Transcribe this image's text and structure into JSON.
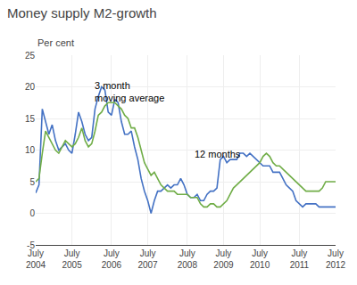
{
  "chart_data": {
    "type": "line",
    "title": "Money supply M2-growth",
    "ylabel": "Per cent",
    "categories": [
      "July\n2004",
      null,
      null,
      null,
      null,
      null,
      null,
      null,
      null,
      null,
      null,
      "July\n2005",
      null,
      null,
      null,
      null,
      null,
      null,
      null,
      null,
      null,
      null,
      null,
      "July\n2006",
      null,
      null,
      null,
      null,
      null,
      null,
      null,
      null,
      null,
      null,
      "July\n2007",
      null,
      null,
      null,
      null,
      null,
      null,
      null,
      null,
      null,
      null,
      null,
      "July\n2008",
      null,
      null,
      null,
      null,
      null,
      null,
      null,
      null,
      null,
      null,
      "July\n2009",
      null,
      null,
      null,
      null,
      null,
      null,
      null,
      null,
      null,
      null,
      "July\n2010",
      null,
      null,
      null,
      null,
      null,
      null,
      null,
      null,
      null,
      null,
      null,
      "July\n2011",
      null,
      null,
      null,
      null,
      null,
      null,
      null,
      null,
      null,
      null,
      "July\n2012"
    ],
    "series": [
      {
        "color": "#4472C4",
        "values": [
          3.2,
          4.5,
          16.5,
          14.5,
          12.5,
          14.0,
          11.5,
          10.0,
          10.5,
          11.0,
          10.0,
          9.5,
          12.5,
          16.0,
          14.5,
          12.5,
          11.5,
          12.0,
          16.5,
          18.5,
          20.0,
          19.5,
          16.0,
          15.5,
          18.0,
          17.5,
          14.5,
          12.5,
          12.5,
          13.0,
          10.5,
          8.5,
          5.5,
          3.5,
          2.0,
          0.0,
          2.0,
          3.5,
          3.5,
          4.0,
          4.5,
          4.0,
          4.5,
          4.5,
          5.5,
          4.5,
          3.0,
          2.5,
          2.5,
          3.0,
          2.0,
          2.0,
          3.0,
          3.5,
          3.5,
          4.0,
          8.5,
          9.0,
          8.0,
          8.5,
          8.5,
          8.5,
          9.5,
          9.5,
          9.0,
          9.5,
          9.0,
          8.5,
          8.0,
          7.5,
          7.5,
          7.5,
          6.5,
          6.5,
          6.5,
          5.5,
          4.5,
          4.0,
          3.5,
          2.0,
          1.5,
          1.0,
          1.5,
          1.5,
          1.5,
          1.5,
          1.0,
          1.0,
          1.0,
          1.0,
          1.0,
          1.0
        ]
      },
      {
        "color": "#70AD47",
        "values": [
          5.0,
          5.5,
          9.5,
          13.0,
          12.0,
          11.0,
          10.0,
          9.5,
          10.5,
          11.5,
          11.0,
          10.5,
          11.0,
          12.0,
          13.5,
          11.5,
          10.5,
          11.0,
          13.0,
          15.5,
          16.0,
          17.0,
          17.5,
          17.5,
          17.5,
          17.0,
          16.5,
          15.5,
          15.0,
          13.5,
          13.5,
          12.0,
          10.0,
          8.0,
          7.0,
          6.0,
          6.5,
          5.5,
          4.5,
          4.0,
          3.5,
          3.5,
          3.5,
          3.0,
          3.0,
          3.0,
          3.0,
          2.5,
          2.5,
          2.5,
          1.5,
          1.0,
          1.0,
          1.5,
          1.5,
          1.0,
          1.0,
          1.5,
          2.0,
          3.0,
          4.0,
          4.5,
          5.0,
          5.5,
          6.0,
          6.5,
          7.0,
          7.5,
          8.0,
          9.0,
          9.5,
          9.0,
          8.0,
          7.5,
          7.5,
          7.0,
          6.5,
          6.0,
          5.5,
          5.0,
          4.5,
          4.0,
          3.5,
          3.5,
          3.5,
          3.5,
          3.5,
          4.0,
          5.0,
          5.0,
          5.0,
          5.0
        ]
      }
    ],
    "ylim": [
      -5,
      25
    ],
    "yticks": [
      -5,
      0,
      5,
      10,
      15,
      20,
      25
    ],
    "grid": true,
    "annotations": [
      "3 month\nmoving average",
      "12 months"
    ]
  }
}
